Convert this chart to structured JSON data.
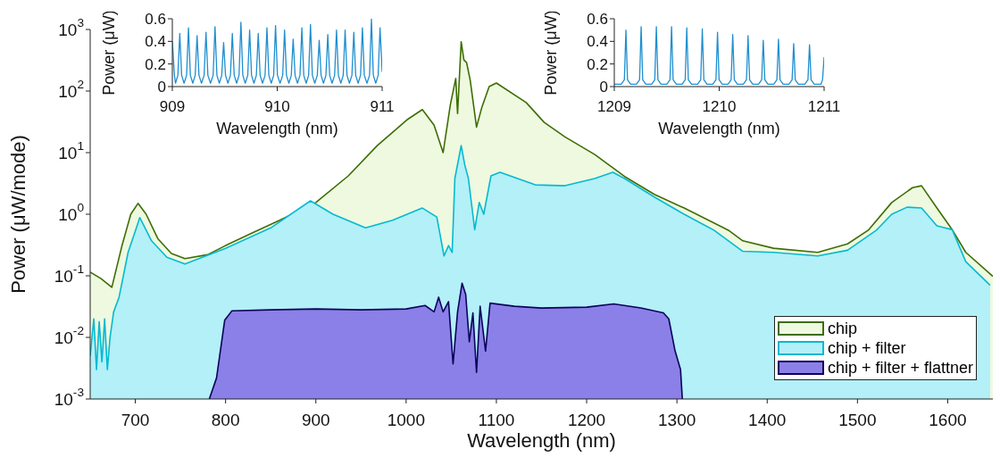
{
  "chart_data": [
    {
      "type": "area",
      "xlabel": "Wavelength (nm)",
      "ylabel": "Power (μW/mode)",
      "log": true,
      "legend": "bottom right",
      "xlim": [
        650,
        1650
      ],
      "xticks": [
        700,
        800,
        900,
        1000,
        1100,
        1200,
        1300,
        1400,
        1500,
        1600
      ],
      "ylim": [
        0.001,
        1000
      ],
      "yticks": [
        {
          "value": 0.001,
          "label": "10$^{-3}$"
        },
        {
          "value": 0.01,
          "label": "10$^{-2}$"
        },
        {
          "value": 0.1,
          "label": "10$^{-1}$"
        },
        {
          "value": 1,
          "label": "10$^{0}$"
        },
        {
          "value": 10,
          "label": "10$^{1}$"
        },
        {
          "value": 100,
          "label": "10$^{2}$"
        },
        {
          "value": 1000,
          "label": "10$^{3}$"
        }
      ],
      "series": [
        {
          "name": "chip",
          "color": "#eef9e0",
          "x": [
            650,
            662,
            674,
            685,
            695,
            703,
            712,
            725,
            740,
            755,
            780,
            800,
            830,
            860,
            900,
            936,
            968,
            1002,
            1018,
            1031,
            1041,
            1049,
            1055,
            1057,
            1061,
            1064,
            1067,
            1071,
            1078,
            1084,
            1092,
            1100,
            1133,
            1153,
            1176,
            1209,
            1242,
            1275,
            1308,
            1357,
            1373,
            1407,
            1456,
            1489,
            1512,
            1538,
            1561,
            1571,
            1588,
            1605,
            1620,
            1650
          ],
          "values": [
            0.115,
            0.09,
            0.065,
            0.3,
            1.0,
            1.5,
            1.0,
            0.4,
            0.23,
            0.19,
            0.22,
            0.31,
            0.5,
            0.8,
            1.55,
            4.2,
            13,
            35,
            50,
            28,
            10,
            60,
            160,
            43,
            630,
            320,
            290,
            150,
            26,
            55,
            118,
            135,
            65,
            31,
            18,
            9.3,
            4.1,
            2.1,
            1.26,
            0.55,
            0.37,
            0.28,
            0.24,
            0.33,
            0.55,
            1.55,
            2.7,
            2.9,
            1.26,
            0.56,
            0.24,
            0.098
          ]
        },
        {
          "name": "chip + filter",
          "color": "#b3f0f8",
          "x": [
            650,
            654,
            657,
            660,
            663,
            666,
            669,
            672,
            676,
            682,
            692,
            705,
            718,
            735,
            755,
            800,
            850,
            894,
            919,
            955,
            985,
            1018,
            1034,
            1042,
            1047,
            1051,
            1054,
            1061,
            1065,
            1069,
            1076,
            1081,
            1086,
            1094,
            1104,
            1143,
            1176,
            1209,
            1229,
            1242,
            1275,
            1308,
            1341,
            1373,
            1407,
            1456,
            1489,
            1521,
            1538,
            1555,
            1571,
            1588,
            1605,
            1620,
            1647
          ],
          "values": [
            0.005,
            0.02,
            0.003,
            0.018,
            0.004,
            0.02,
            0.003,
            0.01,
            0.026,
            0.045,
            0.24,
            0.88,
            0.37,
            0.2,
            0.155,
            0.28,
            0.6,
            1.65,
            1.0,
            0.6,
            0.8,
            1.26,
            0.9,
            0.21,
            0.31,
            0.24,
            3.8,
            13,
            6.3,
            3.8,
            0.56,
            1.55,
            1.0,
            4.2,
            4.8,
            3.0,
            2.9,
            3.8,
            4.8,
            3.8,
            1.9,
            1.0,
            0.55,
            0.25,
            0.24,
            0.21,
            0.26,
            0.55,
            1.0,
            1.3,
            1.26,
            0.65,
            0.56,
            0.17,
            0.07
          ]
        },
        {
          "name": "chip + filter + flattner",
          "color": "#8b80e8",
          "x": [
            782,
            790,
            799,
            807,
            850,
            900,
            950,
            1000,
            1021,
            1031,
            1036,
            1041,
            1047,
            1052,
            1057,
            1062,
            1066,
            1070,
            1074,
            1078,
            1082,
            1088,
            1093,
            1120,
            1150,
            1200,
            1230,
            1260,
            1285,
            1291,
            1298,
            1304,
            1306
          ],
          "values": [
            0.001,
            0.0022,
            0.019,
            0.027,
            0.028,
            0.029,
            0.028,
            0.029,
            0.033,
            0.026,
            0.045,
            0.026,
            0.038,
            0.0037,
            0.026,
            0.076,
            0.05,
            0.0085,
            0.025,
            0.0027,
            0.032,
            0.006,
            0.036,
            0.032,
            0.03,
            0.031,
            0.035,
            0.03,
            0.025,
            0.02,
            0.006,
            0.003,
            0.001
          ]
        }
      ]
    },
    {
      "type": "line",
      "xlabel": "Wavelength (nm)",
      "ylabel": "Power (μW)",
      "color": "#1f8fcf",
      "xlim": [
        909,
        911
      ],
      "xticks": [
        909,
        910,
        911
      ],
      "ylim": [
        0,
        0.6
      ],
      "yticks": [
        0,
        0.2,
        0.4,
        0.6
      ],
      "x": [
        909,
        909.02,
        909.03,
        909.053,
        909.071,
        909.089,
        909.112,
        909.136,
        909.154,
        909.172,
        909.195,
        909.218,
        909.236,
        909.254,
        909.278,
        909.303,
        909.321,
        909.339,
        909.364,
        909.389,
        909.407,
        909.425,
        909.448,
        909.471,
        909.489,
        909.507,
        909.53,
        909.554,
        909.572,
        909.59,
        909.613,
        909.636,
        909.654,
        909.672,
        909.695,
        909.719,
        909.737,
        909.755,
        909.778,
        909.801,
        909.819,
        909.837,
        909.86,
        909.884,
        909.902,
        909.92,
        909.943,
        909.966,
        909.984,
        910.002,
        910.027,
        910.052,
        910.07,
        910.088,
        910.111,
        910.134,
        910.152,
        910.17,
        910.193,
        910.217,
        910.235,
        910.253,
        910.276,
        910.299,
        910.317,
        910.335,
        910.358,
        910.382,
        910.4,
        910.418,
        910.441,
        910.464,
        910.482,
        910.5,
        910.523,
        910.547,
        910.565,
        910.583,
        910.606,
        910.629,
        910.647,
        910.665,
        910.688,
        910.712,
        910.73,
        910.748,
        910.771,
        910.794,
        910.812,
        910.83,
        910.855,
        910.88,
        910.898,
        910.916,
        910.939,
        910.962,
        910.98,
        911
      ],
      "values": [
        0.4,
        0.1,
        0.03,
        0.1,
        0.47,
        0.1,
        0.03,
        0.1,
        0.52,
        0.1,
        0.03,
        0.1,
        0.45,
        0.1,
        0.03,
        0.1,
        0.48,
        0.1,
        0.03,
        0.1,
        0.53,
        0.1,
        0.03,
        0.1,
        0.39,
        0.1,
        0.03,
        0.1,
        0.47,
        0.1,
        0.03,
        0.1,
        0.57,
        0.1,
        0.03,
        0.1,
        0.5,
        0.1,
        0.03,
        0.1,
        0.47,
        0.1,
        0.03,
        0.1,
        0.52,
        0.1,
        0.03,
        0.1,
        0.54,
        0.1,
        0.03,
        0.1,
        0.5,
        0.1,
        0.03,
        0.1,
        0.42,
        0.1,
        0.03,
        0.1,
        0.52,
        0.1,
        0.03,
        0.1,
        0.55,
        0.1,
        0.03,
        0.1,
        0.41,
        0.1,
        0.03,
        0.1,
        0.46,
        0.1,
        0.03,
        0.1,
        0.5,
        0.1,
        0.03,
        0.1,
        0.5,
        0.1,
        0.03,
        0.1,
        0.48,
        0.1,
        0.03,
        0.1,
        0.52,
        0.1,
        0.03,
        0.1,
        0.6,
        0.1,
        0.03,
        0.1,
        0.52,
        0.13
      ]
    },
    {
      "type": "line",
      "xlabel": "Wavelength (nm)",
      "ylabel": "Power (μW)",
      "color": "#1f8fcf",
      "xlim": [
        1209,
        1211
      ],
      "xticks": [
        1209,
        1210,
        1211
      ],
      "ylim": [
        0,
        0.6
      ],
      "yticks": [
        0,
        0.2,
        0.4,
        0.6
      ],
      "x": [
        1209,
        1209.066,
        1209.096,
        1209.111,
        1209.126,
        1209.156,
        1209.211,
        1209.241,
        1209.256,
        1209.271,
        1209.301,
        1209.356,
        1209.386,
        1209.401,
        1209.416,
        1209.446,
        1209.501,
        1209.531,
        1209.546,
        1209.561,
        1209.591,
        1209.646,
        1209.676,
        1209.691,
        1209.706,
        1209.736,
        1209.794,
        1209.824,
        1209.839,
        1209.854,
        1209.884,
        1209.939,
        1209.969,
        1209.984,
        1209.999,
        1210.029,
        1210.084,
        1210.114,
        1210.129,
        1210.144,
        1210.174,
        1210.23,
        1210.26,
        1210.275,
        1210.29,
        1210.32,
        1210.375,
        1210.405,
        1210.42,
        1210.435,
        1210.465,
        1210.52,
        1210.55,
        1210.565,
        1210.58,
        1210.61,
        1210.665,
        1210.695,
        1210.71,
        1210.725,
        1210.755,
        1210.816,
        1210.846,
        1210.861,
        1210.876,
        1210.906,
        1210.97,
        1210.985,
        1211
      ],
      "values": [
        0.02,
        0.02,
        0.06,
        0.5,
        0.06,
        0.02,
        0.02,
        0.06,
        0.53,
        0.06,
        0.02,
        0.02,
        0.06,
        0.53,
        0.06,
        0.02,
        0.02,
        0.06,
        0.53,
        0.06,
        0.02,
        0.02,
        0.06,
        0.52,
        0.06,
        0.02,
        0.02,
        0.06,
        0.51,
        0.06,
        0.02,
        0.02,
        0.06,
        0.48,
        0.06,
        0.02,
        0.02,
        0.06,
        0.46,
        0.06,
        0.02,
        0.02,
        0.06,
        0.45,
        0.06,
        0.02,
        0.02,
        0.06,
        0.41,
        0.06,
        0.02,
        0.02,
        0.06,
        0.42,
        0.06,
        0.02,
        0.02,
        0.06,
        0.38,
        0.06,
        0.02,
        0.02,
        0.06,
        0.37,
        0.06,
        0.02,
        0.02,
        0.06,
        0.26
      ]
    }
  ]
}
